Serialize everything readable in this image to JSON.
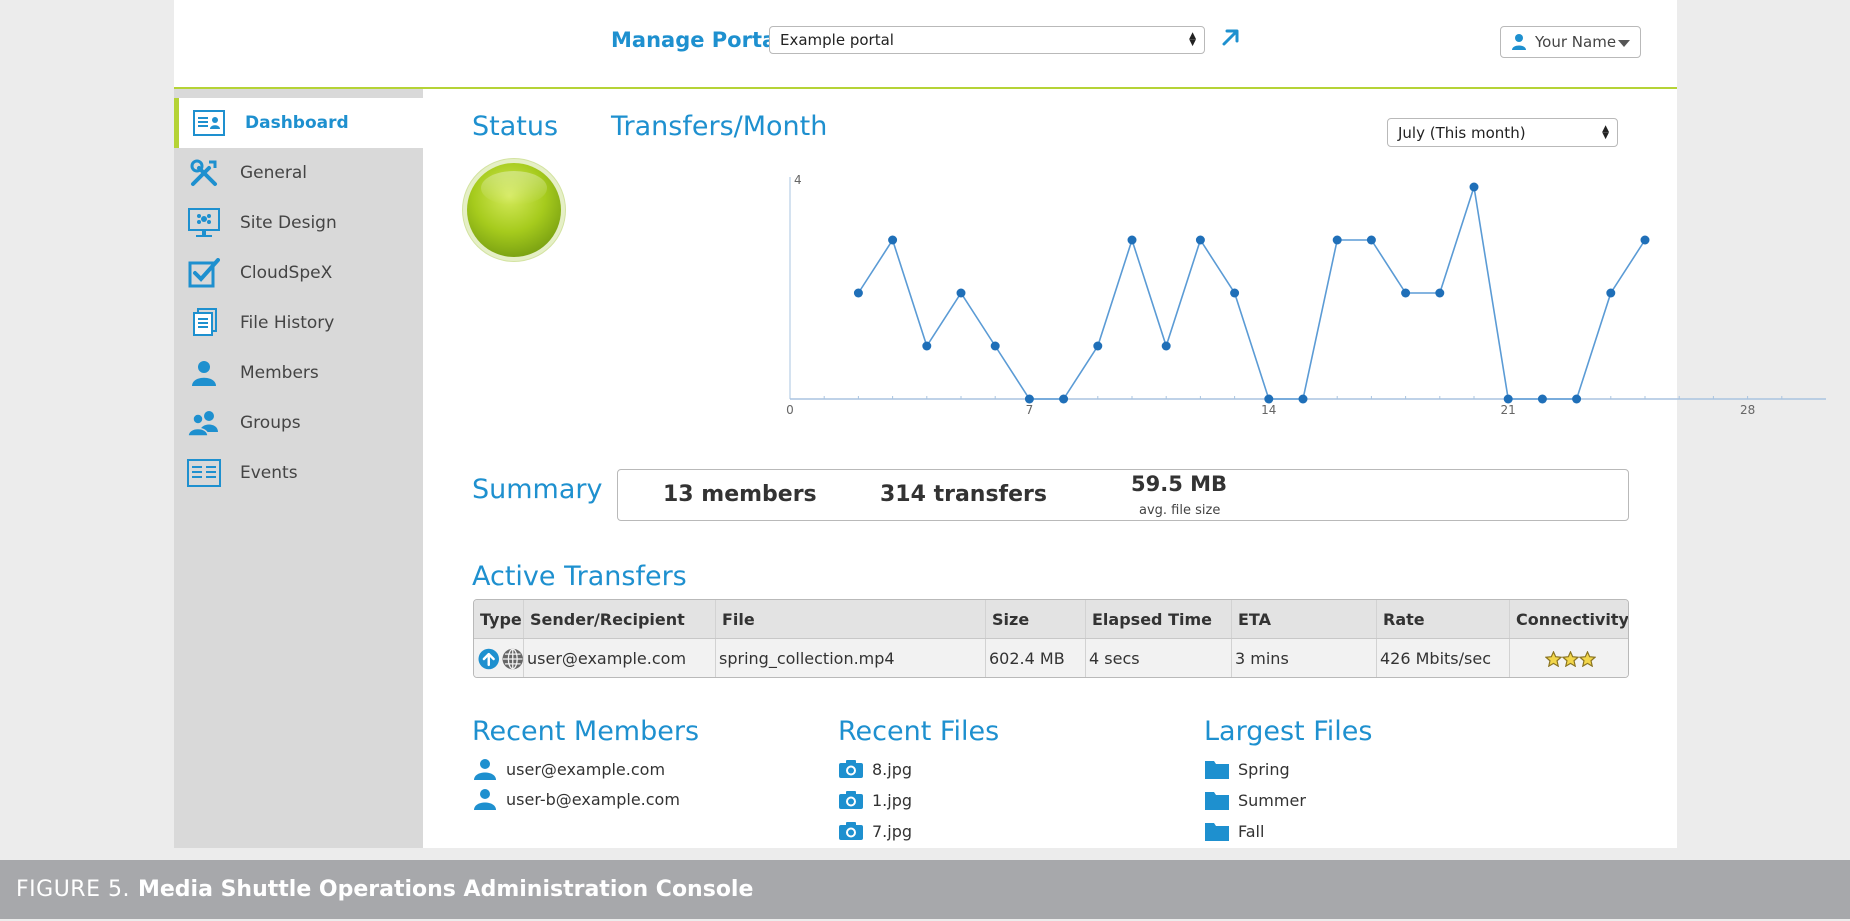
{
  "header": {
    "portal_label": "Manage Portal:",
    "portal_selected": "Example portal",
    "user_name": "Your Name"
  },
  "sidebar": {
    "items": [
      {
        "label": "Dashboard",
        "icon": "dashboard-icon",
        "active": true
      },
      {
        "label": "General",
        "icon": "tools-icon"
      },
      {
        "label": "Site Design",
        "icon": "site-design-icon"
      },
      {
        "label": "CloudSpeX",
        "icon": "checkbox-icon"
      },
      {
        "label": "File History",
        "icon": "file-history-icon"
      },
      {
        "label": "Members",
        "icon": "member-icon"
      },
      {
        "label": "Groups",
        "icon": "groups-icon"
      },
      {
        "label": "Events",
        "icon": "events-icon"
      }
    ]
  },
  "status": {
    "heading": "Status",
    "state_color": "#a6cb1d"
  },
  "transfers_month": {
    "heading": "Transfers/Month",
    "period_selected": "July (This month)"
  },
  "chart_data": {
    "type": "line",
    "x": [
      2,
      3,
      4,
      5,
      6,
      7,
      8,
      9,
      10,
      11,
      12,
      13,
      14,
      15,
      16,
      17,
      18,
      19,
      20,
      21,
      22,
      23,
      24,
      25
    ],
    "values": [
      2,
      3,
      1,
      2,
      1,
      0,
      0,
      1,
      3,
      1,
      3,
      2,
      0,
      0,
      3,
      3,
      2,
      2,
      4,
      0,
      0,
      0,
      2,
      3
    ],
    "xlim": [
      0,
      30
    ],
    "ylim": [
      0,
      4
    ],
    "x_ticks": [
      "0",
      "7",
      "14",
      "21",
      "28"
    ],
    "y_ticks": [
      "4"
    ],
    "color": "#1f6fb8",
    "line_color": "#5b9bd5"
  },
  "summary": {
    "heading": "Summary",
    "members": "13 members",
    "transfers": "314 transfers",
    "avg_size": "59.5 MB",
    "avg_size_label": "avg. file size"
  },
  "active_transfers": {
    "heading": "Active Transfers",
    "columns": [
      "Type",
      "Sender/Recipient",
      "File",
      "Size",
      "Elapsed Time",
      "ETA",
      "Rate",
      "Connectivity"
    ],
    "rows": [
      {
        "type_icons": [
          "upload-icon",
          "globe-icon"
        ],
        "sender": "user@example.com",
        "file": "spring_collection.mp4",
        "size": "602.4 MB",
        "elapsed": "4 secs",
        "eta": "3 mins",
        "rate": "426 Mbits/sec",
        "connectivity_stars": 3
      }
    ]
  },
  "recent_members": {
    "heading": "Recent Members",
    "items": [
      "user@example.com",
      "user-b@example.com"
    ]
  },
  "recent_files": {
    "heading": "Recent Files",
    "items": [
      "8.jpg",
      "1.jpg",
      "7.jpg"
    ]
  },
  "largest_files": {
    "heading": "Largest Files",
    "items": [
      "Spring",
      "Summer",
      "Fall"
    ]
  },
  "caption": {
    "figure_number": "FIGURE 5.",
    "title": "Media Shuttle Operations Administration Console"
  },
  "colors": {
    "accent": "#1e90cf",
    "highlight": "#b5d336"
  }
}
